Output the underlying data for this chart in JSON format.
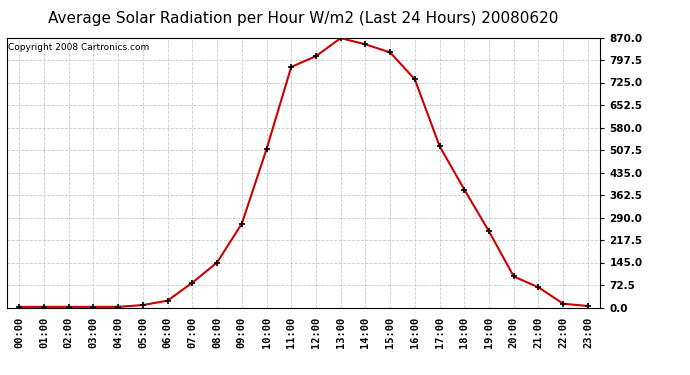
{
  "title": "Average Solar Radiation per Hour W/m2 (Last 24 Hours) 20080620",
  "copyright": "Copyright 2008 Cartronics.com",
  "hours": [
    "00:00",
    "01:00",
    "02:00",
    "03:00",
    "04:00",
    "05:00",
    "06:00",
    "07:00",
    "08:00",
    "09:00",
    "10:00",
    "11:00",
    "12:00",
    "13:00",
    "14:00",
    "15:00",
    "16:00",
    "17:00",
    "18:00",
    "19:00",
    "20:00",
    "21:00",
    "22:00",
    "23:00"
  ],
  "values": [
    2,
    2,
    2,
    2,
    2,
    8,
    22,
    80,
    145,
    270,
    510,
    775,
    810,
    868,
    848,
    822,
    735,
    520,
    380,
    245,
    100,
    65,
    12,
    5
  ],
  "line_color": "#cc0000",
  "marker_color": "#000000",
  "background_color": "#ffffff",
  "grid_color": "#c8c8c8",
  "ylim": [
    0,
    870
  ],
  "yticks": [
    0.0,
    72.5,
    145.0,
    217.5,
    290.0,
    362.5,
    435.0,
    507.5,
    580.0,
    652.5,
    725.0,
    797.5,
    870.0
  ],
  "title_fontsize": 11,
  "copyright_fontsize": 6.5,
  "tick_fontsize": 7.5
}
